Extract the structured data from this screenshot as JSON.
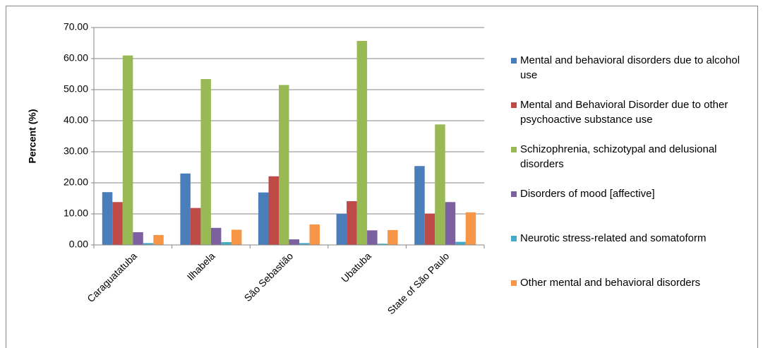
{
  "chart_data": {
    "type": "bar",
    "y_label": "Percent (%)",
    "categories": [
      "Caraguatatuba",
      "Ilhabela",
      "São Sebastião",
      "Ubatuba",
      "State of São Paulo"
    ],
    "series": [
      {
        "name": "Mental and behavioral disorders due to alcohol use",
        "color": "#4a7ebb",
        "values": [
          17.0,
          23.0,
          16.9,
          10.0,
          25.4
        ]
      },
      {
        "name": "Mental and Behavioral Disorder due to other psychoactive substance use",
        "color": "#be4b48",
        "values": [
          13.8,
          11.9,
          22.1,
          14.1,
          10.1
        ]
      },
      {
        "name": "Schizophrenia, schizotypal and delusional disorders",
        "color": "#98b954",
        "values": [
          61.0,
          53.4,
          51.5,
          65.7,
          38.8
        ]
      },
      {
        "name": "Disorders of mood [affective]",
        "color": "#7d60a0",
        "values": [
          4.1,
          5.5,
          1.8,
          4.7,
          13.8
        ]
      },
      {
        "name": "Neurotic stress-related and somatoform",
        "color": "#46aac5",
        "values": [
          0.6,
          0.9,
          0.6,
          0.4,
          1.0
        ]
      },
      {
        "name": "Other mental and behavioral disorders",
        "color": "#f79646",
        "values": [
          3.2,
          4.9,
          6.6,
          4.8,
          10.5
        ]
      }
    ],
    "ylim": [
      0,
      70
    ],
    "yticks": [
      {
        "value": 0,
        "label": "0.00"
      },
      {
        "value": 10,
        "label": "10.00"
      },
      {
        "value": 20,
        "label": "20.00"
      },
      {
        "value": 30,
        "label": "30.00"
      },
      {
        "value": 40,
        "label": "40.00"
      },
      {
        "value": 50,
        "label": "50.00"
      },
      {
        "value": 60,
        "label": "60.00"
      },
      {
        "value": 70,
        "label": "70.00"
      }
    ],
    "grid": true,
    "legend": "right"
  }
}
